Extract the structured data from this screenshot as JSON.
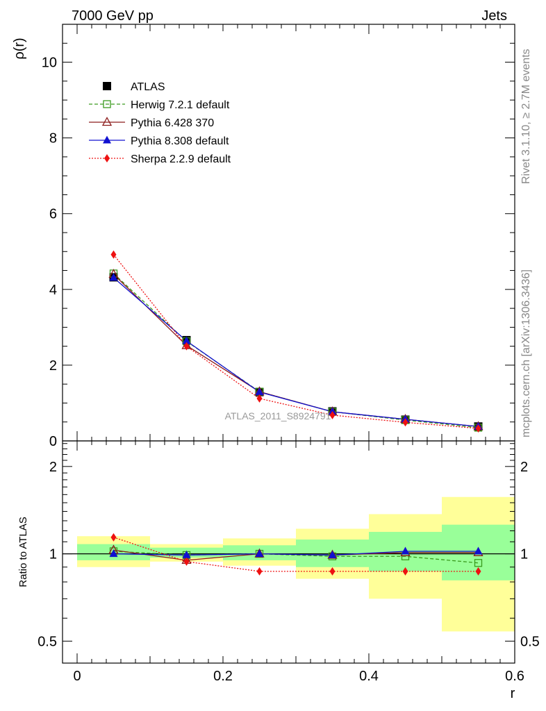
{
  "header": {
    "energy_label": "7000 GeV pp",
    "process_label": "Jets"
  },
  "side_labels": {
    "rivet": "Rivet 3.1.10, ≥ 2.7M events",
    "mcplots": "mcplots.cern.ch [arXiv:1306.3436]"
  },
  "watermark": "ATLAS_2011_S8924791",
  "colors": {
    "atlas": "#000000",
    "herwig": "#3a9a1e",
    "pythia6": "#8b1a1a",
    "pythia8": "#1010d0",
    "sherpa": "#ee1111",
    "band_yellow": "#ffff99",
    "band_green": "#99ff99"
  },
  "chart_data": [
    {
      "type": "line",
      "panel": "main",
      "ylabel": "ρ(r)",
      "xlim": [
        -0.02,
        0.6
      ],
      "ylim": [
        0,
        11
      ],
      "yticks": [
        0,
        2,
        4,
        6,
        8,
        10
      ],
      "ytick_labels": [
        "0",
        "2",
        "4",
        "6",
        "8",
        "10"
      ],
      "legend_position": "top-left",
      "x": [
        0.05,
        0.15,
        0.25,
        0.35,
        0.45,
        0.55
      ],
      "series": [
        {
          "name": "ATLAS",
          "values": [
            4.32,
            2.66,
            1.29,
            0.78,
            0.56,
            0.38
          ],
          "marker": "square-filled",
          "line": "none",
          "color": "#000000"
        },
        {
          "name": "Herwig 7.2.1 default",
          "values": [
            4.42,
            2.63,
            1.3,
            0.77,
            0.55,
            0.35
          ],
          "marker": "square-open",
          "line": "dashed",
          "color": "#3a9a1e"
        },
        {
          "name": "Pythia 6.428 370",
          "values": [
            4.4,
            2.52,
            1.3,
            0.77,
            0.57,
            0.38
          ],
          "marker": "triangle-open",
          "line": "solid",
          "color": "#8b1a1a"
        },
        {
          "name": "Pythia 8.308 default",
          "values": [
            4.31,
            2.64,
            1.29,
            0.77,
            0.57,
            0.38
          ],
          "marker": "triangle-filled",
          "line": "solid",
          "color": "#1010d0"
        },
        {
          "name": "Sherpa 2.2.9 default",
          "values": [
            4.92,
            2.5,
            1.12,
            0.68,
            0.49,
            0.33
          ],
          "marker": "diamond-filled",
          "line": "dotted",
          "color": "#ee1111"
        }
      ]
    },
    {
      "type": "line",
      "panel": "ratio",
      "xlabel": "r",
      "ylabel": "Ratio to ATLAS",
      "xlim": [
        -0.02,
        0.6
      ],
      "ylim": [
        0.42,
        2.45
      ],
      "log_y": true,
      "xticks": [
        0,
        0.2,
        0.4,
        0.6
      ],
      "xtick_labels": [
        "0",
        "0.2",
        "0.4",
        "0.6"
      ],
      "yticks": [
        0.5,
        1,
        2
      ],
      "ytick_labels": [
        "0.5",
        "1",
        "2"
      ],
      "bins": [
        [
          0.0,
          0.1
        ],
        [
          0.1,
          0.2
        ],
        [
          0.2,
          0.3
        ],
        [
          0.3,
          0.4
        ],
        [
          0.4,
          0.5
        ],
        [
          0.5,
          0.6
        ]
      ],
      "band_yellow": [
        [
          0.9,
          1.15
        ],
        [
          0.94,
          1.08
        ],
        [
          0.91,
          1.13
        ],
        [
          0.82,
          1.22
        ],
        [
          0.7,
          1.37
        ],
        [
          0.54,
          1.57
        ]
      ],
      "band_green": [
        [
          0.95,
          1.08
        ],
        [
          0.97,
          1.05
        ],
        [
          0.95,
          1.07
        ],
        [
          0.9,
          1.12
        ],
        [
          0.87,
          1.19
        ],
        [
          0.81,
          1.26
        ]
      ],
      "x": [
        0.05,
        0.15,
        0.25,
        0.35,
        0.45,
        0.55
      ],
      "series": [
        {
          "name": "Herwig 7.2.1 default",
          "values": [
            1.02,
            0.99,
            1.0,
            0.98,
            0.98,
            0.93
          ],
          "marker": "square-open",
          "line": "dashed",
          "color": "#3a9a1e"
        },
        {
          "name": "Pythia 6.428 370",
          "values": [
            1.03,
            0.95,
            1.0,
            0.99,
            1.01,
            1.01
          ],
          "marker": "triangle-open",
          "line": "solid",
          "color": "#8b1a1a"
        },
        {
          "name": "Pythia 8.308 default",
          "values": [
            1.0,
            0.99,
            1.0,
            0.99,
            1.02,
            1.02
          ],
          "marker": "triangle-filled",
          "line": "solid",
          "color": "#1010d0"
        },
        {
          "name": "Sherpa 2.2.9 default",
          "values": [
            1.14,
            0.94,
            0.87,
            0.87,
            0.87,
            0.87
          ],
          "marker": "diamond-filled",
          "line": "dotted",
          "color": "#ee1111"
        }
      ]
    }
  ]
}
